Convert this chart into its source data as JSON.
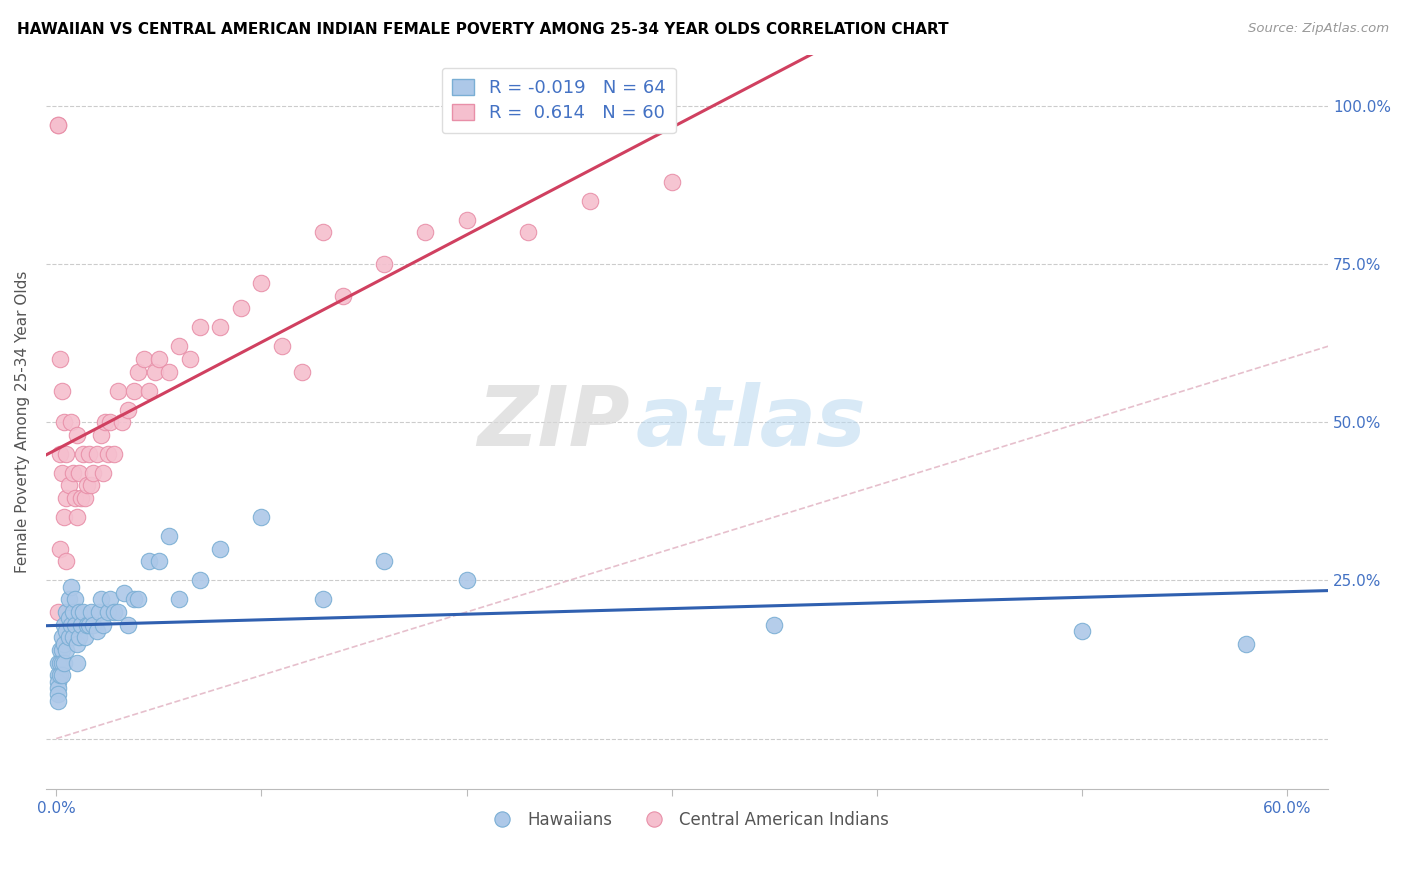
{
  "title": "HAWAIIAN VS CENTRAL AMERICAN INDIAN FEMALE POVERTY AMONG 25-34 YEAR OLDS CORRELATION CHART",
  "source": "Source: ZipAtlas.com",
  "ylabel": "Female Poverty Among 25-34 Year Olds",
  "x_ticks": [
    0.0,
    0.1,
    0.2,
    0.3,
    0.4,
    0.5,
    0.6
  ],
  "x_ticklabels": [
    "0.0%",
    "",
    "",
    "",
    "",
    "",
    "60.0%"
  ],
  "y_ticks_right": [
    0.0,
    0.25,
    0.5,
    0.75,
    1.0
  ],
  "y_ticklabels_right": [
    "",
    "25.0%",
    "50.0%",
    "75.0%",
    "100.0%"
  ],
  "xlim": [
    -0.005,
    0.62
  ],
  "ylim": [
    -0.08,
    1.08
  ],
  "hawaii_color": "#adc8e8",
  "hawaii_edge_color": "#7aaed4",
  "central_color": "#f5bfce",
  "central_edge_color": "#e88fa8",
  "regression_hawaii_color": "#3060b0",
  "regression_central_color": "#d04060",
  "diagonal_color": "#e0b0c0",
  "watermark_zip": "ZIP",
  "watermark_atlas": "atlas",
  "legend_r_hawaii": "-0.019",
  "legend_n_hawaii": "64",
  "legend_r_central": "0.614",
  "legend_n_central": "60",
  "hawaii_x": [
    0.001,
    0.001,
    0.001,
    0.001,
    0.001,
    0.001,
    0.002,
    0.002,
    0.002,
    0.003,
    0.003,
    0.003,
    0.003,
    0.004,
    0.004,
    0.004,
    0.005,
    0.005,
    0.005,
    0.006,
    0.006,
    0.006,
    0.007,
    0.007,
    0.008,
    0.008,
    0.009,
    0.009,
    0.01,
    0.01,
    0.011,
    0.011,
    0.012,
    0.013,
    0.014,
    0.015,
    0.016,
    0.017,
    0.018,
    0.02,
    0.021,
    0.022,
    0.023,
    0.025,
    0.026,
    0.028,
    0.03,
    0.033,
    0.035,
    0.038,
    0.04,
    0.045,
    0.05,
    0.055,
    0.06,
    0.07,
    0.08,
    0.1,
    0.13,
    0.16,
    0.2,
    0.35,
    0.5,
    0.58
  ],
  "hawaii_y": [
    0.12,
    0.1,
    0.09,
    0.08,
    0.07,
    0.06,
    0.14,
    0.12,
    0.1,
    0.16,
    0.14,
    0.12,
    0.1,
    0.18,
    0.15,
    0.12,
    0.2,
    0.17,
    0.14,
    0.22,
    0.19,
    0.16,
    0.24,
    0.18,
    0.2,
    0.16,
    0.22,
    0.18,
    0.15,
    0.12,
    0.2,
    0.16,
    0.18,
    0.2,
    0.16,
    0.18,
    0.18,
    0.2,
    0.18,
    0.17,
    0.2,
    0.22,
    0.18,
    0.2,
    0.22,
    0.2,
    0.2,
    0.23,
    0.18,
    0.22,
    0.22,
    0.28,
    0.28,
    0.32,
    0.22,
    0.25,
    0.3,
    0.35,
    0.22,
    0.28,
    0.25,
    0.18,
    0.17,
    0.15
  ],
  "central_x": [
    0.001,
    0.001,
    0.001,
    0.002,
    0.002,
    0.002,
    0.003,
    0.003,
    0.004,
    0.004,
    0.005,
    0.005,
    0.005,
    0.006,
    0.007,
    0.008,
    0.009,
    0.01,
    0.01,
    0.011,
    0.012,
    0.013,
    0.014,
    0.015,
    0.016,
    0.017,
    0.018,
    0.02,
    0.022,
    0.023,
    0.024,
    0.025,
    0.026,
    0.028,
    0.03,
    0.032,
    0.035,
    0.038,
    0.04,
    0.043,
    0.045,
    0.048,
    0.05,
    0.055,
    0.06,
    0.065,
    0.07,
    0.08,
    0.09,
    0.1,
    0.11,
    0.12,
    0.13,
    0.14,
    0.16,
    0.18,
    0.2,
    0.23,
    0.26,
    0.3
  ],
  "central_y": [
    0.97,
    0.97,
    0.2,
    0.6,
    0.45,
    0.3,
    0.55,
    0.42,
    0.5,
    0.35,
    0.45,
    0.38,
    0.28,
    0.4,
    0.5,
    0.42,
    0.38,
    0.48,
    0.35,
    0.42,
    0.38,
    0.45,
    0.38,
    0.4,
    0.45,
    0.4,
    0.42,
    0.45,
    0.48,
    0.42,
    0.5,
    0.45,
    0.5,
    0.45,
    0.55,
    0.5,
    0.52,
    0.55,
    0.58,
    0.6,
    0.55,
    0.58,
    0.6,
    0.58,
    0.62,
    0.6,
    0.65,
    0.65,
    0.68,
    0.72,
    0.62,
    0.58,
    0.8,
    0.7,
    0.75,
    0.8,
    0.82,
    0.8,
    0.85,
    0.88
  ]
}
